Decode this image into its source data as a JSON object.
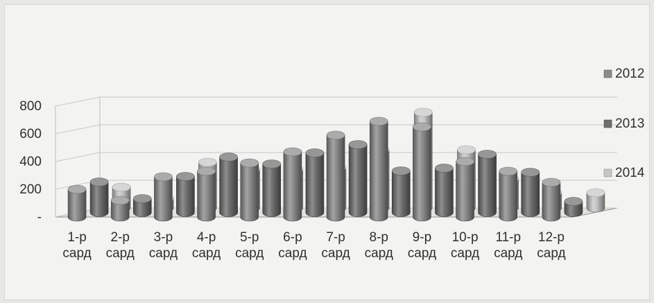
{
  "chart_data": {
    "type": "bar",
    "style": "3d-cylinder",
    "title": "",
    "xlabel": "",
    "ylabel": "",
    "ylim": [
      0,
      800
    ],
    "y_ticks": [
      {
        "value": 0,
        "label": "-"
      },
      {
        "value": 200,
        "label": "200"
      },
      {
        "value": 400,
        "label": "400"
      },
      {
        "value": 600,
        "label": "600"
      },
      {
        "value": 800,
        "label": "800"
      }
    ],
    "grid": true,
    "legend_position": "right",
    "categories": [
      [
        "1-р",
        "сард"
      ],
      [
        "2-р",
        "сард"
      ],
      [
        "3-р",
        "сард"
      ],
      [
        "4-р",
        "сард"
      ],
      [
        "5-р",
        "сард"
      ],
      [
        "6-р",
        "сард"
      ],
      [
        "7-р",
        "сард"
      ],
      [
        "8-р",
        "сард"
      ],
      [
        "9-р",
        "сард"
      ],
      [
        "10-р",
        "сард"
      ],
      [
        "11-р",
        "сард"
      ],
      [
        "12-р",
        "сард"
      ]
    ],
    "series": [
      {
        "name": "2012",
        "color": "#8a8a8a",
        "values": [
          200,
          120,
          290,
          330,
          390,
          470,
          590,
          690,
          650,
          400,
          330,
          250
        ]
      },
      {
        "name": "2013",
        "color": "#6f6f6f",
        "values": [
          220,
          100,
          260,
          400,
          350,
          430,
          490,
          300,
          320,
          420,
          290,
          80
        ]
      },
      {
        "name": "2014",
        "color": "#c6c6c6",
        "values": [
          150,
          70,
          330,
          280,
          280,
          290,
          420,
          690,
          420,
          210,
          110,
          110
        ]
      }
    ]
  }
}
